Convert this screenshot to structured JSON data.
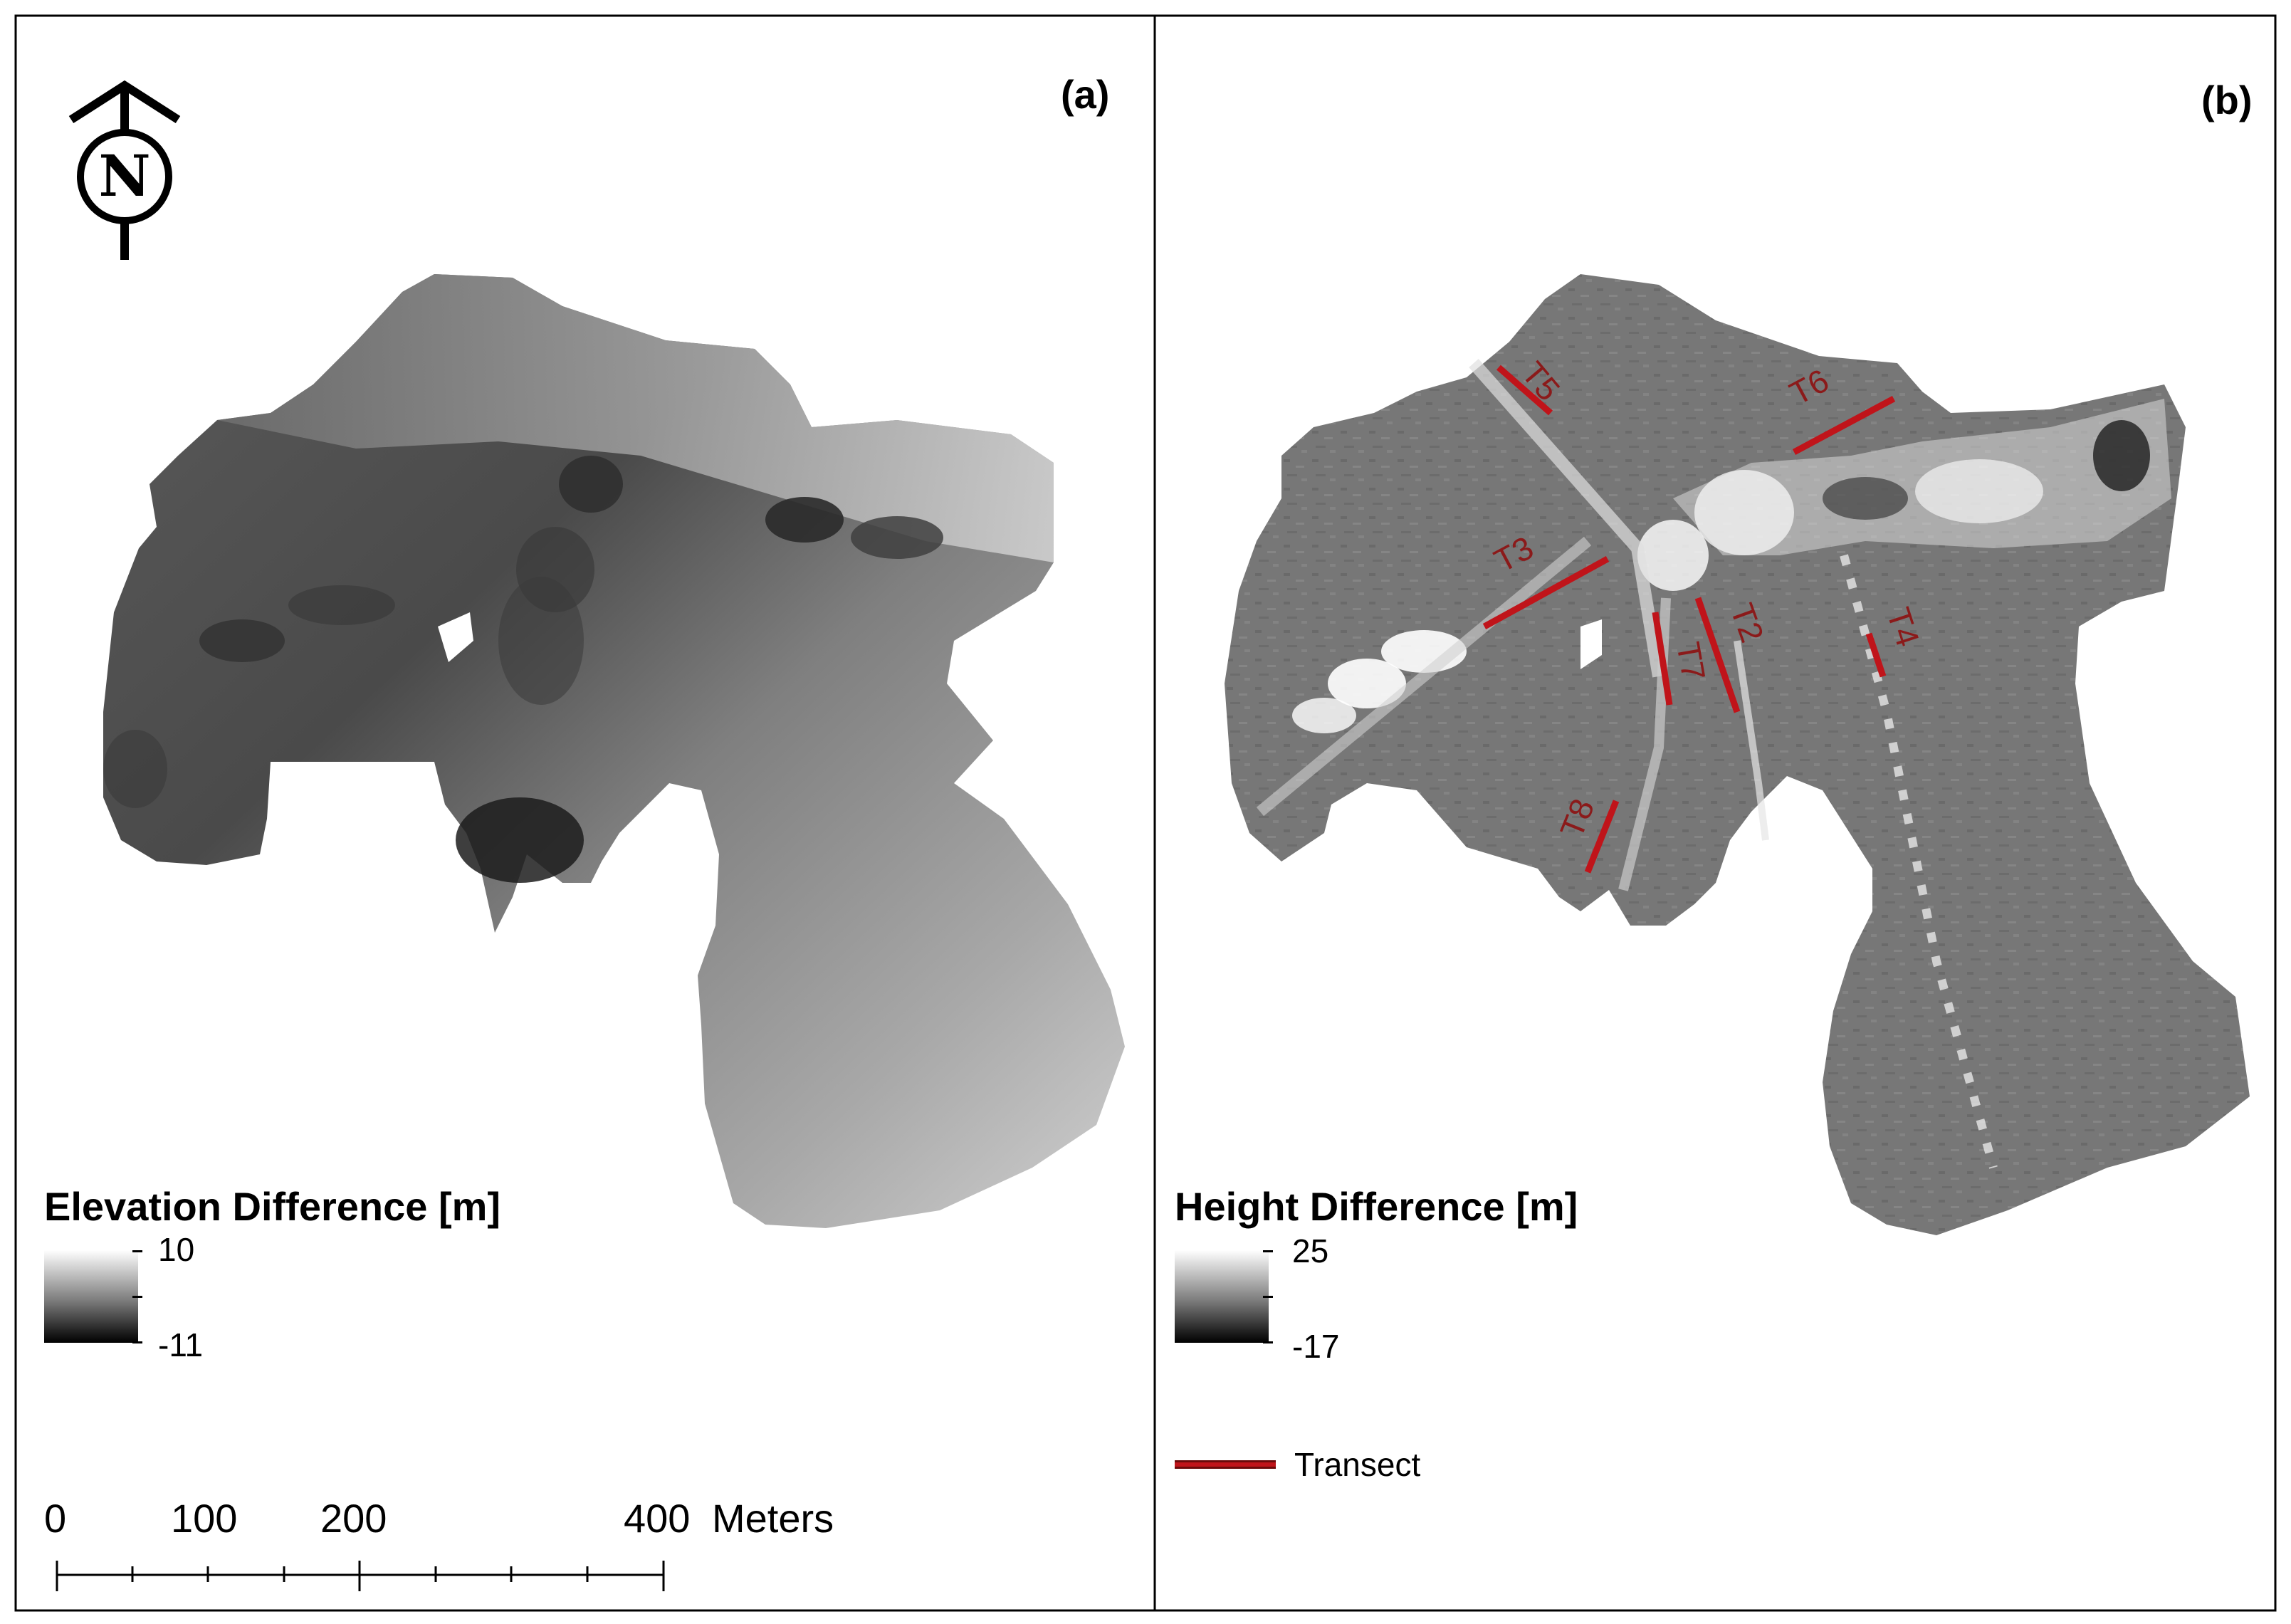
{
  "panels": {
    "a": {
      "label": "(a)",
      "legend": {
        "title": "Elevation Difference [m]",
        "max": "10",
        "min": "-11"
      }
    },
    "b": {
      "label": "(b)",
      "legend": {
        "title": "Height Difference [m]",
        "max": "25",
        "min": "-17"
      },
      "transect_legend": "Transect",
      "transects": [
        "T5",
        "T6",
        "T3",
        "T7",
        "T2",
        "T4",
        "T8"
      ]
    }
  },
  "north_arrow": {
    "letter": "N",
    "icon": "north-arrow-icon"
  },
  "scale_bar": {
    "labels": [
      "0",
      "100",
      "200",
      "400"
    ],
    "unit": "Meters"
  },
  "colors": {
    "transect": "#c0141a",
    "transect_label": "#8b1a1a"
  }
}
